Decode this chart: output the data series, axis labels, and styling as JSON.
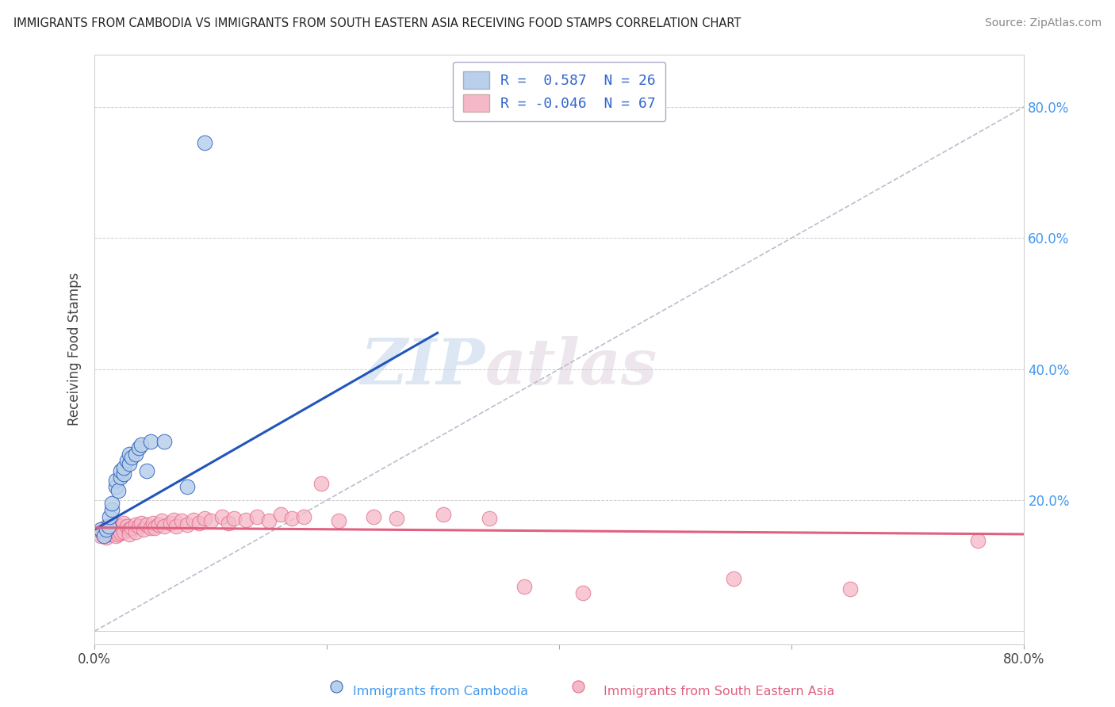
{
  "title": "IMMIGRANTS FROM CAMBODIA VS IMMIGRANTS FROM SOUTH EASTERN ASIA RECEIVING FOOD STAMPS CORRELATION CHART",
  "source": "Source: ZipAtlas.com",
  "ylabel": "Receiving Food Stamps",
  "xlim": [
    0.0,
    0.8
  ],
  "ylim": [
    -0.02,
    0.88
  ],
  "yticks": [
    0.0,
    0.2,
    0.4,
    0.6,
    0.8
  ],
  "ytick_labels": [
    "",
    "20.0%",
    "40.0%",
    "60.0%",
    "80.0%"
  ],
  "watermark_zip": "ZIP",
  "watermark_atlas": "atlas",
  "color_blue": "#b8d0ea",
  "color_pink": "#f5b8c8",
  "line_blue": "#2255bb",
  "line_pink": "#e06080",
  "line_diag": "#b0b8c8",
  "scatter_blue": [
    [
      0.005,
      0.155
    ],
    [
      0.008,
      0.145
    ],
    [
      0.01,
      0.155
    ],
    [
      0.012,
      0.16
    ],
    [
      0.013,
      0.175
    ],
    [
      0.015,
      0.185
    ],
    [
      0.015,
      0.195
    ],
    [
      0.018,
      0.22
    ],
    [
      0.018,
      0.23
    ],
    [
      0.02,
      0.215
    ],
    [
      0.022,
      0.235
    ],
    [
      0.022,
      0.245
    ],
    [
      0.025,
      0.24
    ],
    [
      0.025,
      0.25
    ],
    [
      0.028,
      0.26
    ],
    [
      0.03,
      0.255
    ],
    [
      0.03,
      0.27
    ],
    [
      0.032,
      0.265
    ],
    [
      0.035,
      0.27
    ],
    [
      0.038,
      0.28
    ],
    [
      0.04,
      0.285
    ],
    [
      0.045,
      0.245
    ],
    [
      0.048,
      0.29
    ],
    [
      0.06,
      0.29
    ],
    [
      0.08,
      0.22
    ],
    [
      0.095,
      0.745
    ]
  ],
  "scatter_pink": [
    [
      0.005,
      0.145
    ],
    [
      0.006,
      0.152
    ],
    [
      0.007,
      0.148
    ],
    [
      0.008,
      0.155
    ],
    [
      0.009,
      0.15
    ],
    [
      0.01,
      0.16
    ],
    [
      0.01,
      0.143
    ],
    [
      0.011,
      0.158
    ],
    [
      0.012,
      0.148
    ],
    [
      0.013,
      0.155
    ],
    [
      0.014,
      0.16
    ],
    [
      0.015,
      0.152
    ],
    [
      0.015,
      0.148
    ],
    [
      0.016,
      0.155
    ],
    [
      0.018,
      0.162
    ],
    [
      0.018,
      0.145
    ],
    [
      0.02,
      0.158
    ],
    [
      0.02,
      0.148
    ],
    [
      0.022,
      0.16
    ],
    [
      0.022,
      0.15
    ],
    [
      0.025,
      0.165
    ],
    [
      0.025,
      0.152
    ],
    [
      0.028,
      0.16
    ],
    [
      0.03,
      0.155
    ],
    [
      0.03,
      0.148
    ],
    [
      0.032,
      0.158
    ],
    [
      0.035,
      0.162
    ],
    [
      0.035,
      0.152
    ],
    [
      0.038,
      0.16
    ],
    [
      0.04,
      0.165
    ],
    [
      0.042,
      0.155
    ],
    [
      0.045,
      0.162
    ],
    [
      0.048,
      0.158
    ],
    [
      0.05,
      0.165
    ],
    [
      0.052,
      0.158
    ],
    [
      0.055,
      0.162
    ],
    [
      0.058,
      0.168
    ],
    [
      0.06,
      0.16
    ],
    [
      0.065,
      0.165
    ],
    [
      0.068,
      0.17
    ],
    [
      0.07,
      0.16
    ],
    [
      0.075,
      0.168
    ],
    [
      0.08,
      0.162
    ],
    [
      0.085,
      0.17
    ],
    [
      0.09,
      0.165
    ],
    [
      0.095,
      0.172
    ],
    [
      0.1,
      0.168
    ],
    [
      0.11,
      0.175
    ],
    [
      0.115,
      0.165
    ],
    [
      0.12,
      0.172
    ],
    [
      0.13,
      0.17
    ],
    [
      0.14,
      0.175
    ],
    [
      0.15,
      0.168
    ],
    [
      0.16,
      0.178
    ],
    [
      0.17,
      0.172
    ],
    [
      0.18,
      0.175
    ],
    [
      0.195,
      0.225
    ],
    [
      0.21,
      0.168
    ],
    [
      0.24,
      0.175
    ],
    [
      0.26,
      0.172
    ],
    [
      0.3,
      0.178
    ],
    [
      0.34,
      0.172
    ],
    [
      0.37,
      0.068
    ],
    [
      0.42,
      0.058
    ],
    [
      0.55,
      0.08
    ],
    [
      0.65,
      0.065
    ],
    [
      0.76,
      0.138
    ]
  ]
}
